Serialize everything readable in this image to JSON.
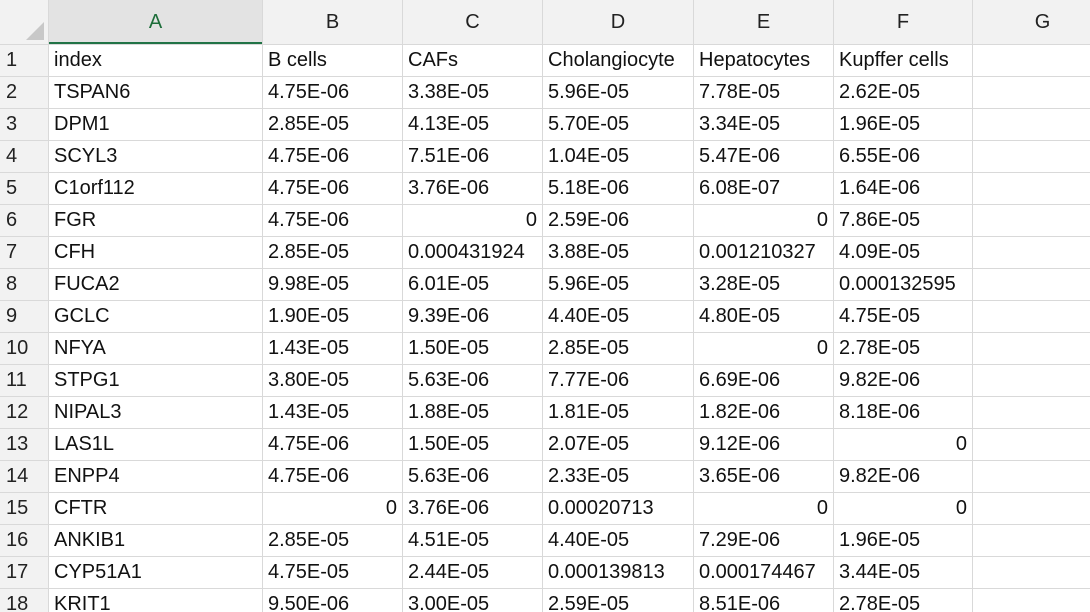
{
  "columns": [
    "A",
    "B",
    "C",
    "D",
    "E",
    "F",
    "G"
  ],
  "active_column": "A",
  "rows": [
    {
      "n": "1",
      "cells": [
        {
          "v": "index"
        },
        {
          "v": "B cells"
        },
        {
          "v": "CAFs"
        },
        {
          "v": "Cholangiocyte"
        },
        {
          "v": "Hepatocytes"
        },
        {
          "v": "Kupffer cells"
        },
        {
          "v": ""
        }
      ]
    },
    {
      "n": "2",
      "cells": [
        {
          "v": "TSPAN6"
        },
        {
          "v": "4.75E-06"
        },
        {
          "v": "3.38E-05"
        },
        {
          "v": "5.96E-05"
        },
        {
          "v": "7.78E-05"
        },
        {
          "v": "2.62E-05"
        },
        {
          "v": ""
        }
      ]
    },
    {
      "n": "3",
      "cells": [
        {
          "v": "DPM1"
        },
        {
          "v": "2.85E-05"
        },
        {
          "v": "4.13E-05"
        },
        {
          "v": "5.70E-05"
        },
        {
          "v": "3.34E-05"
        },
        {
          "v": "1.96E-05"
        },
        {
          "v": ""
        }
      ]
    },
    {
      "n": "4",
      "cells": [
        {
          "v": "SCYL3"
        },
        {
          "v": "4.75E-06"
        },
        {
          "v": "7.51E-06"
        },
        {
          "v": "1.04E-05"
        },
        {
          "v": "5.47E-06"
        },
        {
          "v": "6.55E-06"
        },
        {
          "v": ""
        }
      ]
    },
    {
      "n": "5",
      "cells": [
        {
          "v": "C1orf112"
        },
        {
          "v": "4.75E-06"
        },
        {
          "v": "3.76E-06"
        },
        {
          "v": "5.18E-06"
        },
        {
          "v": "6.08E-07"
        },
        {
          "v": "1.64E-06"
        },
        {
          "v": ""
        }
      ]
    },
    {
      "n": "6",
      "cells": [
        {
          "v": "FGR"
        },
        {
          "v": "4.75E-06"
        },
        {
          "v": "0",
          "num": true
        },
        {
          "v": "2.59E-06"
        },
        {
          "v": "0",
          "num": true
        },
        {
          "v": "7.86E-05"
        },
        {
          "v": ""
        }
      ]
    },
    {
      "n": "7",
      "cells": [
        {
          "v": "CFH"
        },
        {
          "v": "2.85E-05"
        },
        {
          "v": "0.000431924"
        },
        {
          "v": "3.88E-05"
        },
        {
          "v": "0.001210327"
        },
        {
          "v": "4.09E-05"
        },
        {
          "v": ""
        }
      ]
    },
    {
      "n": "8",
      "cells": [
        {
          "v": "FUCA2"
        },
        {
          "v": "9.98E-05"
        },
        {
          "v": "6.01E-05"
        },
        {
          "v": "5.96E-05"
        },
        {
          "v": "3.28E-05"
        },
        {
          "v": "0.000132595"
        },
        {
          "v": ""
        }
      ]
    },
    {
      "n": "9",
      "cells": [
        {
          "v": "GCLC"
        },
        {
          "v": "1.90E-05"
        },
        {
          "v": "9.39E-06"
        },
        {
          "v": "4.40E-05"
        },
        {
          "v": "4.80E-05"
        },
        {
          "v": "4.75E-05"
        },
        {
          "v": ""
        }
      ]
    },
    {
      "n": "10",
      "cells": [
        {
          "v": "NFYA"
        },
        {
          "v": "1.43E-05"
        },
        {
          "v": "1.50E-05"
        },
        {
          "v": "2.85E-05"
        },
        {
          "v": "0",
          "num": true
        },
        {
          "v": "2.78E-05"
        },
        {
          "v": ""
        }
      ]
    },
    {
      "n": "11",
      "cells": [
        {
          "v": "STPG1"
        },
        {
          "v": "3.80E-05"
        },
        {
          "v": "5.63E-06"
        },
        {
          "v": "7.77E-06"
        },
        {
          "v": "6.69E-06"
        },
        {
          "v": "9.82E-06"
        },
        {
          "v": ""
        }
      ]
    },
    {
      "n": "12",
      "cells": [
        {
          "v": "NIPAL3"
        },
        {
          "v": "1.43E-05"
        },
        {
          "v": "1.88E-05"
        },
        {
          "v": "1.81E-05"
        },
        {
          "v": "1.82E-06"
        },
        {
          "v": "8.18E-06"
        },
        {
          "v": ""
        }
      ]
    },
    {
      "n": "13",
      "cells": [
        {
          "v": "LAS1L"
        },
        {
          "v": "4.75E-06"
        },
        {
          "v": "1.50E-05"
        },
        {
          "v": "2.07E-05"
        },
        {
          "v": "9.12E-06"
        },
        {
          "v": "0",
          "num": true
        },
        {
          "v": ""
        }
      ]
    },
    {
      "n": "14",
      "cells": [
        {
          "v": "ENPP4"
        },
        {
          "v": "4.75E-06"
        },
        {
          "v": "5.63E-06"
        },
        {
          "v": "2.33E-05"
        },
        {
          "v": "3.65E-06"
        },
        {
          "v": "9.82E-06"
        },
        {
          "v": ""
        }
      ]
    },
    {
      "n": "15",
      "cells": [
        {
          "v": "CFTR"
        },
        {
          "v": "0",
          "num": true
        },
        {
          "v": "3.76E-06"
        },
        {
          "v": "0.00020713"
        },
        {
          "v": "0",
          "num": true
        },
        {
          "v": "0",
          "num": true
        },
        {
          "v": ""
        }
      ]
    },
    {
      "n": "16",
      "cells": [
        {
          "v": "ANKIB1"
        },
        {
          "v": "2.85E-05"
        },
        {
          "v": "4.51E-05"
        },
        {
          "v": "4.40E-05"
        },
        {
          "v": "7.29E-06"
        },
        {
          "v": "1.96E-05"
        },
        {
          "v": ""
        }
      ]
    },
    {
      "n": "17",
      "cells": [
        {
          "v": "CYP51A1"
        },
        {
          "v": "4.75E-05"
        },
        {
          "v": "2.44E-05"
        },
        {
          "v": "0.000139813"
        },
        {
          "v": "0.000174467"
        },
        {
          "v": "3.44E-05"
        },
        {
          "v": ""
        }
      ]
    },
    {
      "n": "18",
      "cells": [
        {
          "v": "KRIT1"
        },
        {
          "v": "9.50E-06"
        },
        {
          "v": "3.00E-05"
        },
        {
          "v": "2.59E-05"
        },
        {
          "v": "8.51E-06"
        },
        {
          "v": "2.78E-05"
        },
        {
          "v": ""
        }
      ]
    }
  ]
}
